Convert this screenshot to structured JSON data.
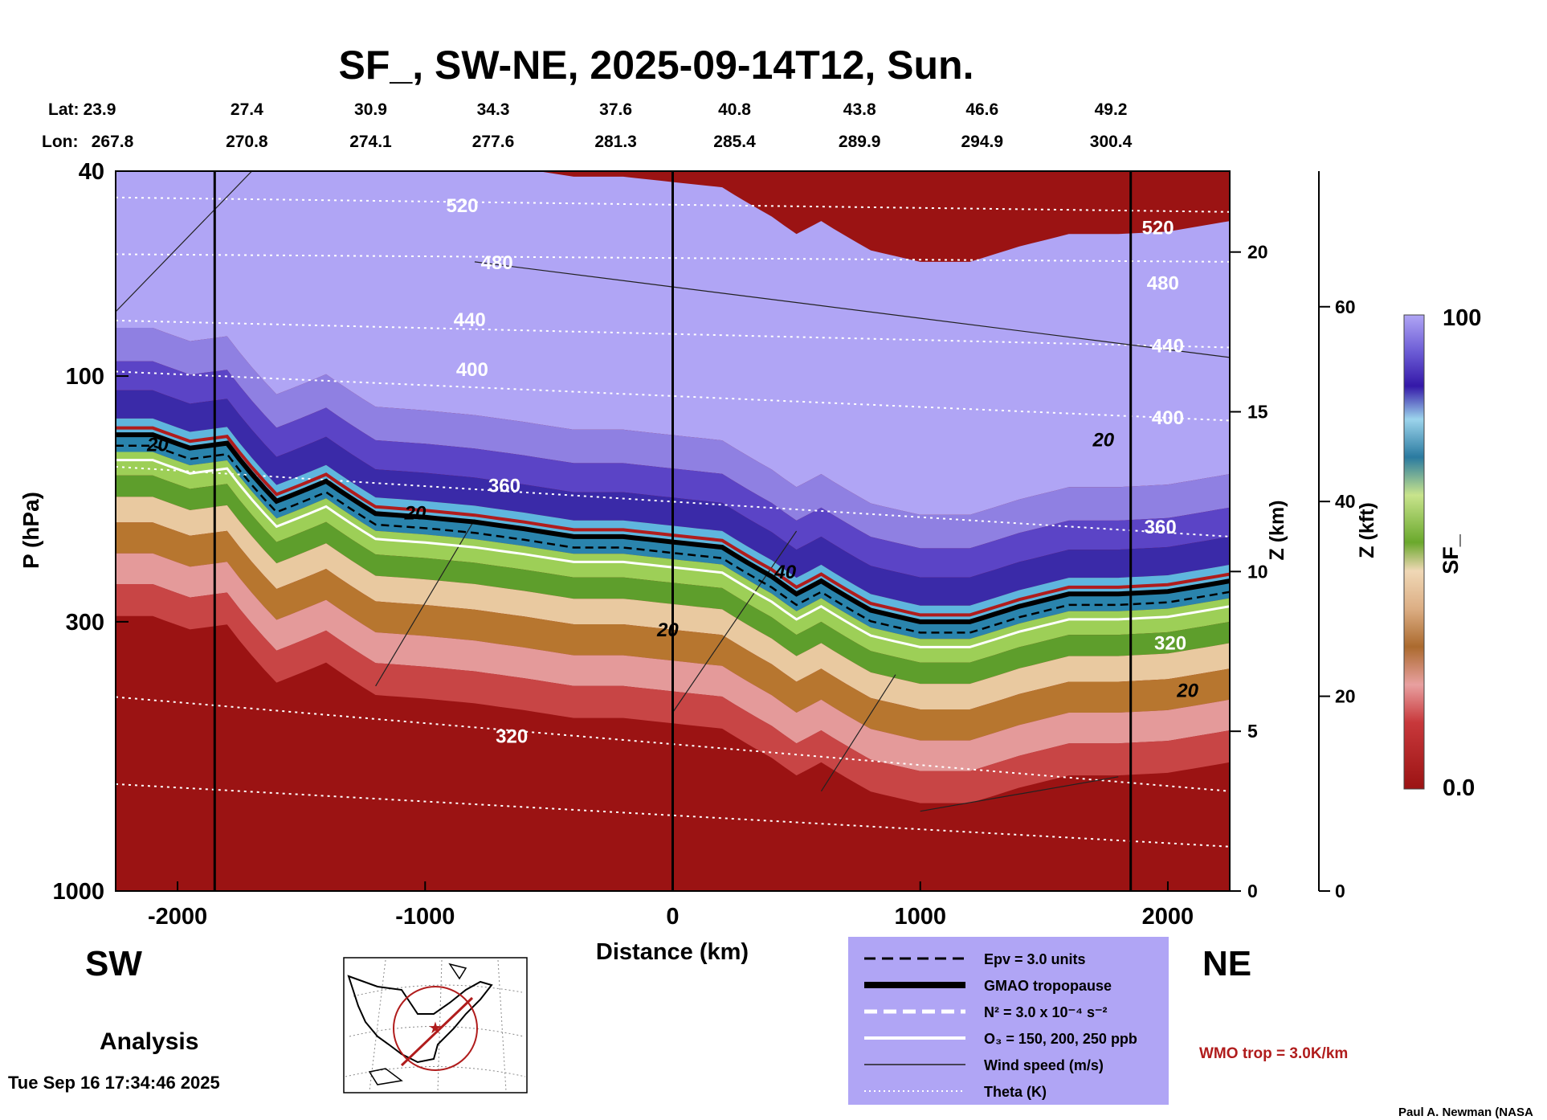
{
  "chart_data": {
    "type": "heatmap",
    "title": "SF_, SW-NE, 2025-09-14T12, Sun.",
    "lat_label": "Lat:",
    "lon_label": "Lon:",
    "lat_ticks": [
      "23.9",
      "27.4",
      "30.9",
      "34.3",
      "37.6",
      "40.8",
      "43.8",
      "46.6",
      "49.2"
    ],
    "lon_ticks": [
      "267.8",
      "270.8",
      "274.1",
      "277.6",
      "281.3",
      "285.4",
      "289.9",
      "294.9",
      "300.4"
    ],
    "tick_distance_km": [
      -2250,
      -1720,
      -1220,
      -725,
      -230,
      250,
      755,
      1250,
      1770
    ],
    "xlabel": "Distance (km)",
    "xlim": [
      -2250,
      2250
    ],
    "x_ticks": [
      -2000,
      -1000,
      0,
      1000,
      2000
    ],
    "ylabel": "P (hPa)",
    "ylim": [
      1000,
      40
    ],
    "y_scale": "log",
    "y_ticks": [
      40,
      100,
      300,
      1000
    ],
    "z_km_label": "Z (km)",
    "z_km_ticks": [
      0,
      5,
      10,
      15,
      20
    ],
    "z_kft_label": "Z (kft)",
    "z_kft_ticks": [
      0,
      20,
      40,
      60
    ],
    "colorbar": {
      "label": "SF_",
      "min_label": "0.0",
      "max_label": "100"
    },
    "vertical_markers_km": [
      -1850,
      0,
      1850
    ],
    "tropopause_hpa": {
      "x": [
        -2250,
        -2100,
        -1950,
        -1800,
        -1600,
        -1400,
        -1200,
        -1000,
        -800,
        -600,
        -400,
        -200,
        0,
        200,
        400,
        500,
        600,
        800,
        1000,
        1200,
        1400,
        1600,
        1800,
        2000,
        2250
      ],
      "values": [
        130,
        130,
        138,
        135,
        175,
        160,
        185,
        188,
        192,
        198,
        205,
        205,
        210,
        215,
        245,
        265,
        250,
        285,
        300,
        300,
        280,
        265,
        265,
        262,
        250
      ]
    },
    "theta_labels": [
      {
        "text": "520",
        "x": -850,
        "p": 48
      },
      {
        "text": "480",
        "x": -710,
        "p": 62
      },
      {
        "text": "440",
        "x": -820,
        "p": 80
      },
      {
        "text": "400",
        "x": -810,
        "p": 100
      },
      {
        "text": "360",
        "x": -680,
        "p": 168
      },
      {
        "text": "320",
        "x": -650,
        "p": 515
      },
      {
        "text": "520",
        "x": 1960,
        "p": 53
      },
      {
        "text": "480",
        "x": 1980,
        "p": 68
      },
      {
        "text": "440",
        "x": 2000,
        "p": 90
      },
      {
        "text": "400",
        "x": 2000,
        "p": 124
      },
      {
        "text": "360",
        "x": 1970,
        "p": 202
      },
      {
        "text": "320",
        "x": 2010,
        "p": 340
      }
    ],
    "wind_labels": [
      {
        "text": "20",
        "x": -2080,
        "p": 140
      },
      {
        "text": "20",
        "x": -1040,
        "p": 190
      },
      {
        "text": "20",
        "x": 1740,
        "p": 137
      },
      {
        "text": "20",
        "x": -20,
        "p": 320
      },
      {
        "text": "20",
        "x": 2080,
        "p": 420
      },
      {
        "text": "40",
        "x": 455,
        "p": 247
      }
    ],
    "regions": {
      "left": "SW",
      "right": "NE"
    },
    "analysis_label": "Analysis",
    "legend": [
      {
        "label": "Epv = 3.0 units",
        "style": "dashed-black"
      },
      {
        "label": "GMAO tropopause",
        "style": "thick-black"
      },
      {
        "label": "N² = 3.0 x 10⁻⁴ s⁻²",
        "style": "dashed-white"
      },
      {
        "label": "O₃ = 150, 200, 250 ppb",
        "style": "solid-white"
      },
      {
        "label": "Wind speed (m/s)",
        "style": "thin-black"
      },
      {
        "label": "Theta (K)",
        "style": "dotted-white"
      }
    ],
    "wmo_label": "WMO trop = 3.0K/km",
    "timestamp": "Tue Sep 16 17:34:46 2025",
    "credit": "Paul A. Newman (NASA"
  },
  "colors": {
    "background": "#ffffff",
    "legend_box": "#b0a5f5",
    "wmo_text": "#b01c1c",
    "tropopause_wmo": "#b01c1c",
    "sf_low": "#9b1313",
    "sf_high": "#b0a5f5"
  }
}
